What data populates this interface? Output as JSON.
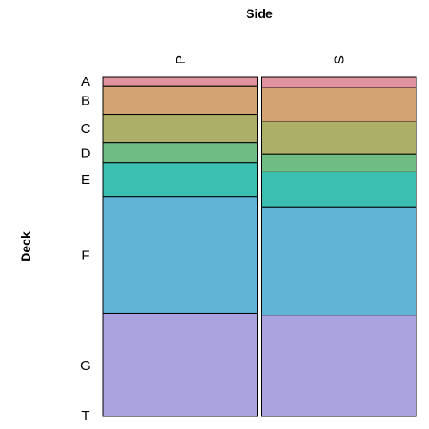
{
  "chart_data": {
    "type": "mosaic",
    "title": "",
    "xlabel": "Side",
    "ylabel": "Deck",
    "x_categories": [
      "P",
      "S"
    ],
    "y_categories": [
      "A",
      "B",
      "C",
      "D",
      "E",
      "F",
      "G",
      "T"
    ],
    "colors": [
      "#E0929F",
      "#D4A373",
      "#ABAF67",
      "#70BC85",
      "#3ABFB0",
      "#62B4D6",
      "#ABA3E0",
      "#E78FC8"
    ],
    "x_widths": [
      0.5,
      0.5
    ],
    "proportions": {
      "P": [
        0.027,
        0.085,
        0.082,
        0.058,
        0.1,
        0.344,
        0.304,
        0.0
      ],
      "S": [
        0.032,
        0.1,
        0.095,
        0.053,
        0.105,
        0.317,
        0.298,
        0.0
      ]
    },
    "y_tick_label_positions": [
      0.013,
      0.07,
      0.153,
      0.225,
      0.303,
      0.525,
      0.85,
      0.997
    ],
    "grid": false,
    "legend": "none"
  }
}
